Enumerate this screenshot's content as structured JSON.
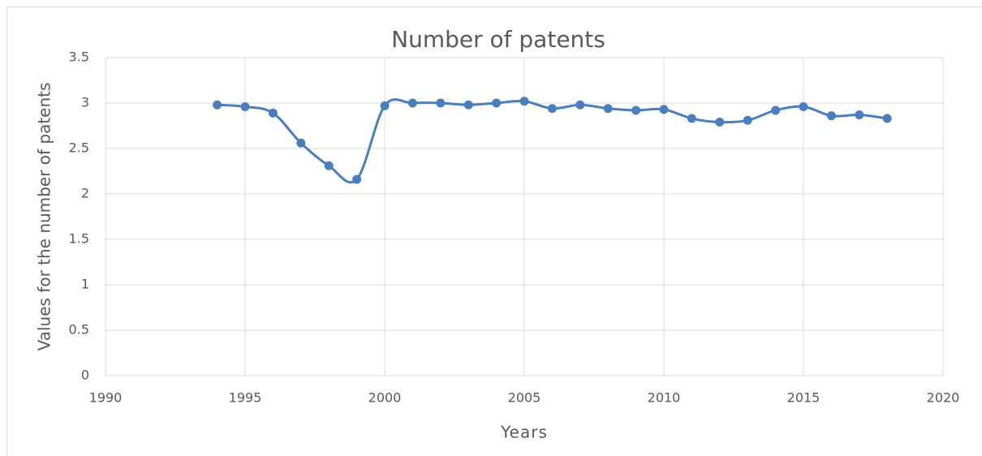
{
  "chart_data": {
    "type": "line",
    "title": "Number of patents",
    "x_label": "Years",
    "y_label": "Values for the number of patents",
    "x": [
      1994,
      1995,
      1996,
      1997,
      1998,
      1999,
      2000,
      2001,
      2002,
      2003,
      2004,
      2005,
      2006,
      2007,
      2008,
      2009,
      2010,
      2011,
      2012,
      2013,
      2014,
      2015,
      2016,
      2017,
      2018
    ],
    "series": [
      {
        "name": "Number of patents",
        "color": "#4a7ebf",
        "values": [
          2.98,
          2.96,
          2.89,
          2.56,
          2.31,
          2.16,
          2.97,
          3.0,
          3.0,
          2.98,
          3.0,
          3.02,
          2.94,
          2.98,
          2.94,
          2.92,
          2.93,
          2.83,
          2.79,
          2.81,
          2.92,
          2.96,
          2.86,
          2.87,
          2.83
        ]
      }
    ],
    "xlim": [
      1990,
      2020
    ],
    "xticks": [
      1990,
      1995,
      2000,
      2005,
      2010,
      2015,
      2020
    ],
    "ylim": [
      0,
      3.5
    ],
    "yticks": [
      0,
      0.5,
      1,
      1.5,
      2,
      2.5,
      3,
      3.5
    ],
    "grid": true,
    "smooth": true
  }
}
